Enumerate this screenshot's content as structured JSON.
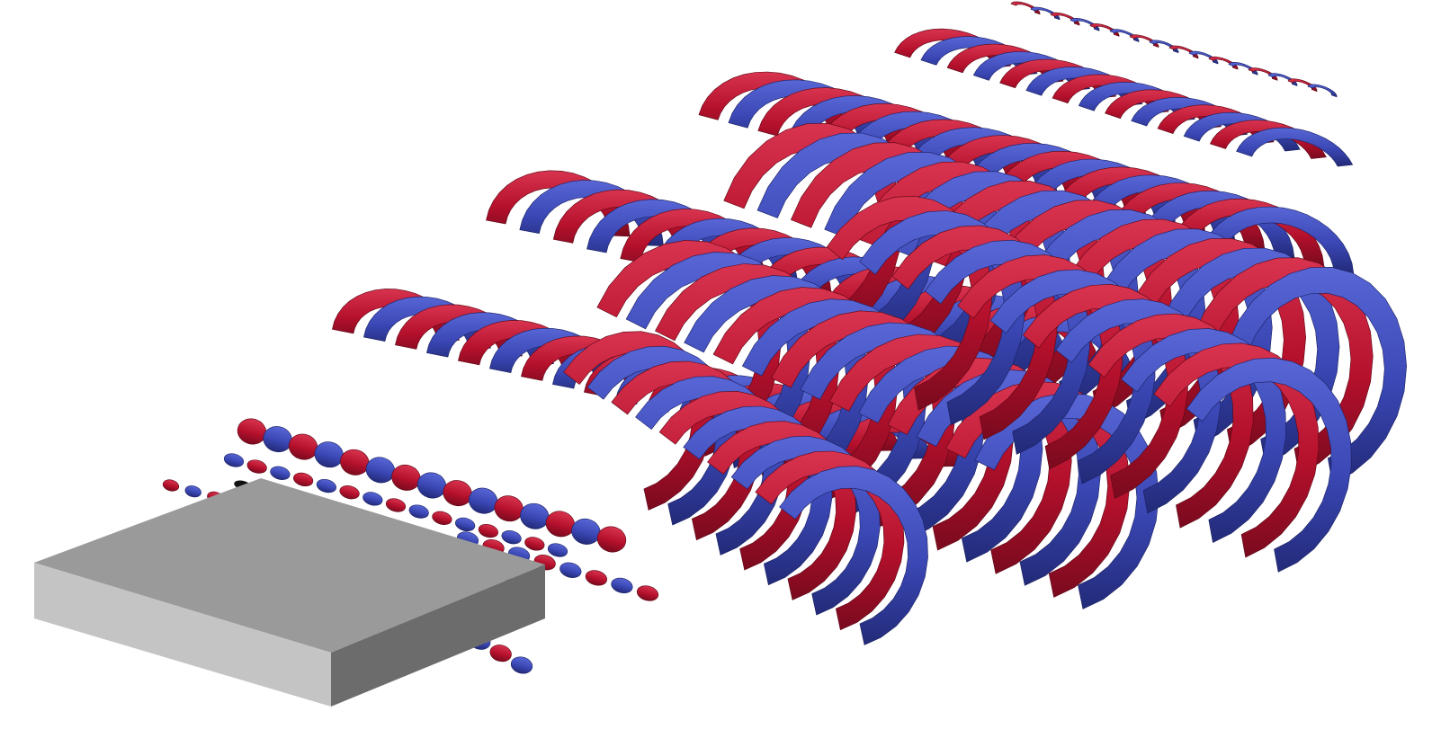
{
  "scene": {
    "subject": "vortex-isosurfaces-behind-plate",
    "colors": {
      "background": "#ffffff",
      "positive": "#b5102c",
      "positive_highlight": "#d8334f",
      "negative": "#3a47b4",
      "negative_highlight": "#5866d6",
      "shadow": "#111111",
      "plate_top": "#9a9a9a",
      "plate_front": "#c4c4c4",
      "plate_side": "#6c6c6c"
    }
  }
}
